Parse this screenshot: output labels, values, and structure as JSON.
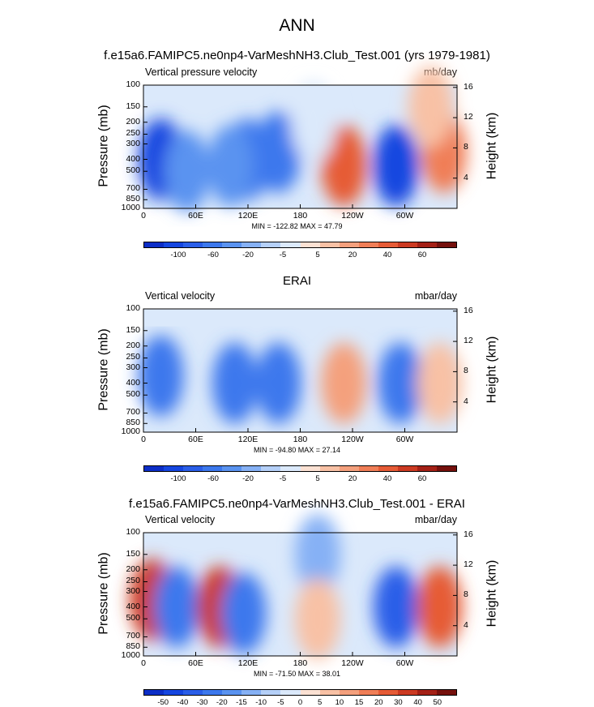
{
  "main_title": "ANN",
  "chart_data": [
    {
      "type": "heatmap",
      "subtitle": "f.e15a6.FAMIPC5.ne0np4-VarMeshNH3.Club_Test.001 (yrs 1979-1981)",
      "left_label": "Vertical pressure velocity",
      "right_label": "mb/day",
      "ylabel": "Pressure (mb)",
      "y2label": "Height (km)",
      "pressure_ticks": [
        "100",
        "150",
        "200",
        "250",
        "300",
        "400",
        "500",
        "700",
        "850",
        "1000"
      ],
      "height_ticks": [
        "16",
        "12",
        "8",
        "4"
      ],
      "lon_ticks": [
        "0",
        "60E",
        "120E",
        "180",
        "120W",
        "60W"
      ],
      "stats": "MIN = -122.82  MAX =  47.79",
      "min": -122.82,
      "max": 47.79,
      "colorbar_labels": [
        "-100",
        "-60",
        "-20",
        "-5",
        "5",
        "20",
        "40",
        "60"
      ],
      "colorbar_levels": [
        -120,
        -100,
        -80,
        -60,
        -40,
        -20,
        -10,
        -5,
        0,
        5,
        10,
        20,
        30,
        40,
        50,
        60
      ],
      "blobs": [
        {
          "lon": 20,
          "p": 400,
          "value": -100
        },
        {
          "lon": 50,
          "p": 500,
          "value": -30
        },
        {
          "lon": 120,
          "p": 400,
          "value": -45
        },
        {
          "lon": 155,
          "p": 350,
          "value": -45
        },
        {
          "lon": 100,
          "p": 450,
          "value": -30
        },
        {
          "lon": 230,
          "p": 450,
          "value": 30
        },
        {
          "lon": 290,
          "p": 450,
          "value": -90
        },
        {
          "lon": 345,
          "p": 350,
          "value": 25
        },
        {
          "lon": 195,
          "p": 200,
          "value": -5
        },
        {
          "lon": 330,
          "p": 150,
          "value": 8
        }
      ]
    },
    {
      "type": "heatmap",
      "subtitle": "ERAI",
      "left_label": "Vertical velocity",
      "right_label": "mbar/day",
      "ylabel": "Pressure (mb)",
      "y2label": "Height (km)",
      "pressure_ticks": [
        "100",
        "150",
        "200",
        "250",
        "300",
        "400",
        "500",
        "700",
        "850",
        "1000"
      ],
      "height_ticks": [
        "16",
        "12",
        "8",
        "4"
      ],
      "lon_ticks": [
        "0",
        "60E",
        "120E",
        "180",
        "120W",
        "60W"
      ],
      "stats": "MIN = -94.80  MAX =  27.14",
      "min": -94.8,
      "max": 27.14,
      "colorbar_labels": [
        "-100",
        "-60",
        "-20",
        "-5",
        "5",
        "20",
        "40",
        "60"
      ],
      "colorbar_levels": [
        -120,
        -100,
        -80,
        -60,
        -40,
        -20,
        -10,
        -5,
        0,
        5,
        10,
        20,
        30,
        40,
        50,
        60
      ],
      "blobs": [
        {
          "lon": 20,
          "p": 350,
          "value": -60
        },
        {
          "lon": 105,
          "p": 400,
          "value": -60
        },
        {
          "lon": 155,
          "p": 400,
          "value": -55
        },
        {
          "lon": 230,
          "p": 400,
          "value": 15
        },
        {
          "lon": 295,
          "p": 400,
          "value": -45
        },
        {
          "lon": 340,
          "p": 400,
          "value": 5
        }
      ]
    },
    {
      "type": "heatmap",
      "subtitle": "f.e15a6.FAMIPC5.ne0np4-VarMeshNH3.Club_Test.001 - ERAI",
      "left_label": "Vertical velocity",
      "right_label": "mbar/day",
      "ylabel": "Pressure (mb)",
      "y2label": "Height (km)",
      "pressure_ticks": [
        "100",
        "150",
        "200",
        "250",
        "300",
        "400",
        "500",
        "700",
        "850",
        "1000"
      ],
      "height_ticks": [
        "16",
        "12",
        "8",
        "4"
      ],
      "lon_ticks": [
        "0",
        "60E",
        "120E",
        "180",
        "120W",
        "60W"
      ],
      "stats": "MIN = -71.50  MAX =  38.01",
      "min": -71.5,
      "max": 38.01,
      "colorbar_labels": [
        "-50",
        "-40",
        "-30",
        "-20",
        "-15",
        "-10",
        "-5",
        "0",
        "5",
        "10",
        "15",
        "20",
        "30",
        "40",
        "50"
      ],
      "colorbar_levels": [
        -60,
        -50,
        -40,
        -30,
        -20,
        -15,
        -10,
        -5,
        0,
        5,
        10,
        15,
        20,
        30,
        40,
        50,
        60
      ],
      "blobs": [
        {
          "lon": 10,
          "p": 350,
          "value": 35
        },
        {
          "lon": 38,
          "p": 400,
          "value": -30
        },
        {
          "lon": 88,
          "p": 400,
          "value": 35
        },
        {
          "lon": 115,
          "p": 450,
          "value": -25
        },
        {
          "lon": 200,
          "p": 150,
          "value": -12
        },
        {
          "lon": 200,
          "p": 500,
          "value": 6
        },
        {
          "lon": 290,
          "p": 400,
          "value": -40
        },
        {
          "lon": 340,
          "p": 400,
          "value": 22
        }
      ]
    }
  ],
  "colors": {
    "neg": [
      "#1d1b8d",
      "#0c2ec7",
      "#1546e0",
      "#2a5ee8",
      "#3c78ed",
      "#5a93f0",
      "#86b1f5",
      "#b5d0f8",
      "#dbe9fb"
    ],
    "pos": [
      "#fbe1d3",
      "#f8c1a5",
      "#f4a07d",
      "#f07e57",
      "#e65b36",
      "#cc3a22",
      "#a42016",
      "#75100c"
    ]
  }
}
